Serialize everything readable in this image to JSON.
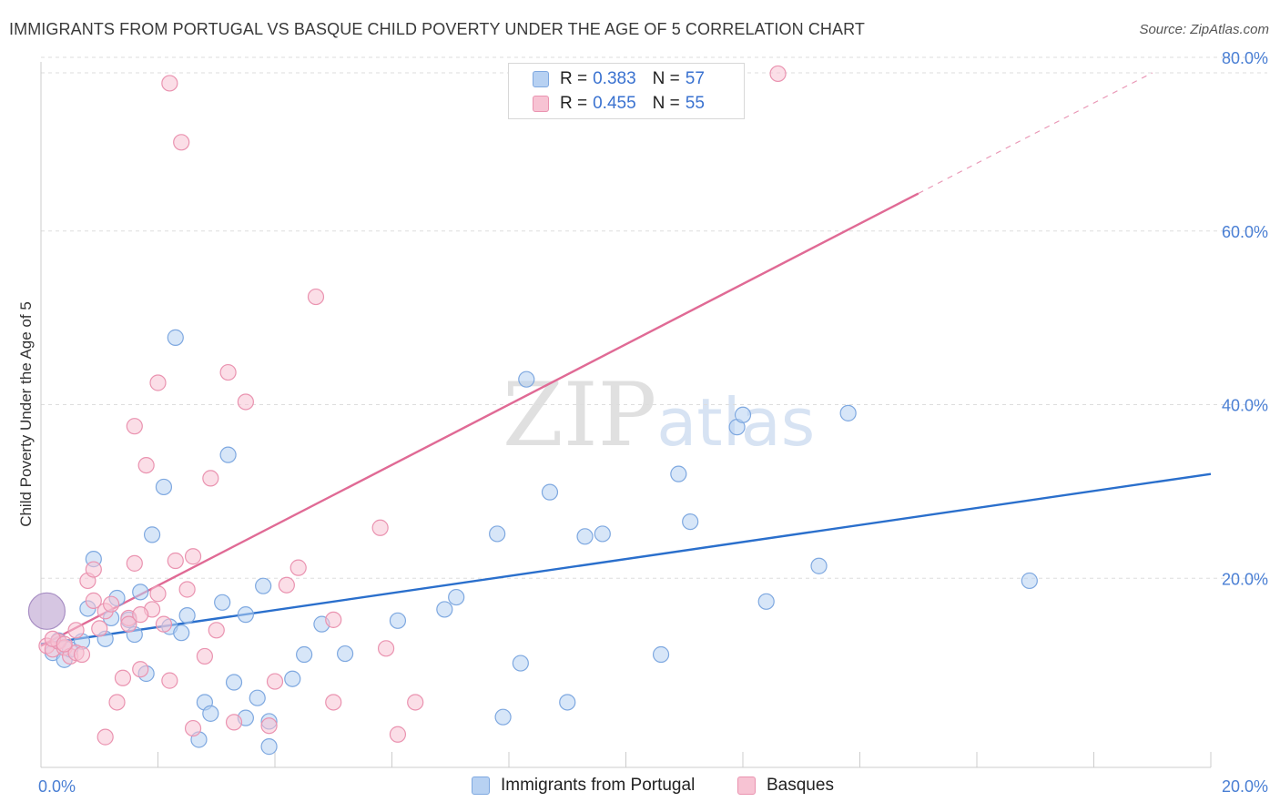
{
  "title": "IMMIGRANTS FROM PORTUGAL VS BASQUE CHILD POVERTY UNDER THE AGE OF 5 CORRELATION CHART",
  "source": "Source: ZipAtlas.com",
  "watermark": {
    "zip": "ZIP",
    "atlas": "atlas"
  },
  "legend": {
    "r_label": "R =",
    "n_label": "N =",
    "series1": {
      "r": "0.383",
      "n": "57"
    },
    "series2": {
      "r": "0.455",
      "n": "55"
    }
  },
  "colors": {
    "blue_fill": "#b7d1f2",
    "blue_stroke": "#7ea8e0",
    "blue_line": "#2a6fcc",
    "pink_fill": "#f7c3d3",
    "pink_stroke": "#ea93b0",
    "pink_line": "#e06a95",
    "tick": "#4a7fd4",
    "grid": "#dddddd"
  },
  "chart_data": {
    "type": "scatter",
    "title": "IMMIGRANTS FROM PORTUGAL VS BASQUE CHILD POVERTY UNDER THE AGE OF 5 CORRELATION CHART",
    "xlabel": "",
    "ylabel": "Child Poverty Under the Age of 5",
    "xlim": [
      0,
      20
    ],
    "ylim": [
      0,
      80
    ],
    "x_ticks": [
      "0.0%",
      "20.0%"
    ],
    "y_ticks": [
      "20.0%",
      "40.0%",
      "60.0%",
      "80.0%"
    ],
    "y_tick_values": [
      20,
      40,
      60,
      80
    ],
    "series": [
      {
        "name": "Immigrants from Portugal",
        "color": "blue",
        "trend": {
          "x": [
            0,
            20
          ],
          "y": [
            14.2,
            33.8
          ],
          "dashed_from": null
        },
        "points": [
          [
            0.1,
            18.0,
            1
          ],
          [
            0.2,
            13.2,
            0
          ],
          [
            0.3,
            14.6,
            0
          ],
          [
            0.4,
            12.4,
            0
          ],
          [
            0.5,
            13.6,
            0
          ],
          [
            0.7,
            14.5,
            0
          ],
          [
            0.8,
            18.3,
            0
          ],
          [
            0.9,
            24.0,
            0
          ],
          [
            1.1,
            14.8,
            0
          ],
          [
            1.2,
            17.2,
            0
          ],
          [
            1.3,
            19.5,
            0
          ],
          [
            1.5,
            17.0,
            0
          ],
          [
            1.6,
            15.3,
            0
          ],
          [
            1.7,
            20.2,
            0
          ],
          [
            1.8,
            10.8,
            0
          ],
          [
            1.9,
            26.8,
            0
          ],
          [
            2.1,
            32.3,
            0
          ],
          [
            2.2,
            16.2,
            0
          ],
          [
            2.3,
            49.5,
            0
          ],
          [
            2.4,
            15.5,
            0
          ],
          [
            2.5,
            17.5,
            0
          ],
          [
            2.7,
            3.2,
            0
          ],
          [
            2.8,
            7.5,
            0
          ],
          [
            2.9,
            6.2,
            0
          ],
          [
            3.1,
            19.0,
            0
          ],
          [
            3.2,
            36.0,
            0
          ],
          [
            3.3,
            9.8,
            0
          ],
          [
            3.5,
            5.7,
            0
          ],
          [
            3.5,
            17.6,
            0
          ],
          [
            3.7,
            8.0,
            0
          ],
          [
            3.8,
            20.9,
            0
          ],
          [
            3.9,
            2.4,
            0
          ],
          [
            3.9,
            5.3,
            0
          ],
          [
            4.3,
            10.2,
            0
          ],
          [
            4.5,
            13.0,
            0
          ],
          [
            4.8,
            16.5,
            0
          ],
          [
            5.2,
            13.1,
            0
          ],
          [
            6.1,
            16.9,
            0
          ],
          [
            6.9,
            18.2,
            0
          ],
          [
            7.1,
            19.6,
            0
          ],
          [
            7.8,
            26.9,
            0
          ],
          [
            7.9,
            5.8,
            0
          ],
          [
            8.2,
            12.0,
            0
          ],
          [
            8.3,
            44.7,
            0
          ],
          [
            8.7,
            31.7,
            0
          ],
          [
            9.0,
            7.5,
            0
          ],
          [
            9.3,
            26.6,
            0
          ],
          [
            9.6,
            26.9,
            0
          ],
          [
            10.6,
            13.0,
            0
          ],
          [
            10.9,
            33.8,
            0
          ],
          [
            11.1,
            28.3,
            0
          ],
          [
            11.9,
            39.2,
            0
          ],
          [
            12.0,
            40.6,
            0
          ],
          [
            12.4,
            19.1,
            0
          ],
          [
            13.3,
            23.2,
            0
          ],
          [
            13.8,
            40.8,
            0
          ],
          [
            16.9,
            21.5,
            0
          ]
        ]
      },
      {
        "name": "Basques",
        "color": "pink",
        "trend": {
          "x": [
            0,
            19
          ],
          "y": [
            14.0,
            80.0
          ],
          "dashed_from": 15.0
        },
        "points": [
          [
            0.1,
            14.0,
            0
          ],
          [
            0.2,
            13.6,
            0
          ],
          [
            0.3,
            14.5,
            0
          ],
          [
            0.4,
            13.8,
            0
          ],
          [
            0.5,
            12.8,
            0
          ],
          [
            0.6,
            15.8,
            0
          ],
          [
            0.6,
            13.2,
            0
          ],
          [
            0.7,
            13.0,
            0
          ],
          [
            0.8,
            21.5,
            0
          ],
          [
            0.9,
            19.2,
            0
          ],
          [
            0.9,
            22.8,
            0
          ],
          [
            1.0,
            16.0,
            0
          ],
          [
            1.1,
            18.0,
            0
          ],
          [
            1.1,
            3.5,
            0
          ],
          [
            1.2,
            18.8,
            0
          ],
          [
            1.3,
            7.5,
            0
          ],
          [
            1.4,
            10.3,
            0
          ],
          [
            1.5,
            17.2,
            0
          ],
          [
            1.5,
            16.5,
            0
          ],
          [
            1.6,
            23.5,
            0
          ],
          [
            1.6,
            39.3,
            0
          ],
          [
            1.7,
            11.3,
            0
          ],
          [
            1.8,
            34.8,
            0
          ],
          [
            1.9,
            18.2,
            0
          ],
          [
            2.0,
            20.0,
            0
          ],
          [
            2.0,
            44.3,
            0
          ],
          [
            2.1,
            16.5,
            0
          ],
          [
            2.2,
            10.0,
            0
          ],
          [
            2.2,
            78.8,
            0
          ],
          [
            2.3,
            23.8,
            0
          ],
          [
            2.4,
            72.0,
            0
          ],
          [
            2.5,
            20.5,
            0
          ],
          [
            2.6,
            24.3,
            0
          ],
          [
            2.6,
            4.5,
            0
          ],
          [
            2.8,
            12.8,
            0
          ],
          [
            2.9,
            33.3,
            0
          ],
          [
            3.0,
            15.8,
            0
          ],
          [
            3.2,
            45.5,
            0
          ],
          [
            3.3,
            5.2,
            0
          ],
          [
            3.5,
            42.1,
            0
          ],
          [
            3.9,
            4.8,
            0
          ],
          [
            4.0,
            9.9,
            0
          ],
          [
            4.2,
            21.0,
            0
          ],
          [
            4.4,
            23.0,
            0
          ],
          [
            4.7,
            54.2,
            0
          ],
          [
            5.0,
            7.5,
            0
          ],
          [
            5.0,
            17.0,
            0
          ],
          [
            5.8,
            27.6,
            0
          ],
          [
            5.9,
            13.7,
            0
          ],
          [
            6.1,
            3.8,
            0
          ],
          [
            6.4,
            7.5,
            0
          ],
          [
            12.6,
            79.9,
            0
          ],
          [
            1.7,
            17.6,
            0
          ],
          [
            0.2,
            14.8,
            0
          ],
          [
            0.4,
            14.2,
            0
          ]
        ]
      }
    ]
  },
  "bottom_legend": {
    "item1": "Immigrants from Portugal",
    "item2": "Basques"
  }
}
